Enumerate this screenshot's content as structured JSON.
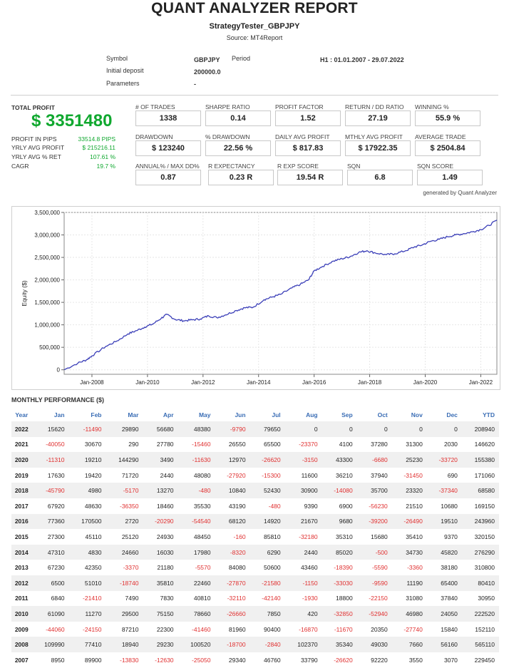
{
  "header": {
    "title": "QUANT ANALYZER REPORT",
    "subtitle": "StrategyTester_GBPJPY",
    "source": "Source: MT4Report"
  },
  "info": {
    "symbol_label": "Symbol",
    "symbol_value": "GBPJPY",
    "period_label": "Period",
    "period_value": "H1 : 01.01.2007 - 29.07.2022",
    "deposit_label": "Initial deposit",
    "deposit_value": "200000.0",
    "params_label": "Parameters",
    "params_value": "-"
  },
  "total_profit": {
    "label": "TOTAL PROFIT",
    "value": "$ 3351480",
    "rows": [
      {
        "label": "PROFIT IN PIPS",
        "value": "33514.8 PIPS"
      },
      {
        "label": "YRLY AVG PROFIT",
        "value": "$ 215216.11"
      },
      {
        "label": "YRLY AVG % RET",
        "value": "107.61 %"
      },
      {
        "label": "CAGR",
        "value": "19.7 %"
      }
    ]
  },
  "metrics": {
    "trades": {
      "label": "# OF TRADES",
      "value": "1338"
    },
    "sharpe": {
      "label": "SHARPE RATIO",
      "value": "0.14"
    },
    "profit_factor": {
      "label": "PROFIT FACTOR",
      "value": "1.52"
    },
    "return_dd": {
      "label": "RETURN / DD RATIO",
      "value": "27.19"
    },
    "winning": {
      "label": "WINNING %",
      "value": "55.9 %"
    },
    "drawdown": {
      "label": "DRAWDOWN",
      "value": "$ 123240"
    },
    "pct_drawdown": {
      "label": "% DRAWDOWN",
      "value": "22.56 %"
    },
    "daily_avg": {
      "label": "DAILY AVG PROFIT",
      "value": "$ 817.83"
    },
    "monthly_avg": {
      "label": "MTHLY AVG PROFIT",
      "value": "$ 17922.35"
    },
    "avg_trade": {
      "label": "AVERAGE TRADE",
      "value": "$ 2504.84"
    },
    "annual_maxdd": {
      "label": "ANNUAL% / MAX DD%",
      "value": "0.87"
    },
    "r_expectancy": {
      "label": "R EXPECTANCY",
      "value": "0.23 R"
    },
    "r_exp_score": {
      "label": "R EXP SCORE",
      "value": "19.54 R"
    },
    "sqn": {
      "label": "SQN",
      "value": "6.8"
    },
    "sqn_score": {
      "label": "SQN SCORE",
      "value": "1.49"
    }
  },
  "generated_by": "generated by Quant Analyzer",
  "chart_data": {
    "type": "line",
    "title": "",
    "xlabel": "",
    "ylabel": "Equity ($)",
    "xlim": [
      2007.0,
      2022.58
    ],
    "ylim": [
      -100000,
      3500000
    ],
    "yticks": [
      0,
      500000,
      1000000,
      1500000,
      2000000,
      2500000,
      3000000,
      3500000
    ],
    "ytick_labels": [
      "0",
      "500,000",
      "1,000,000",
      "1,500,000",
      "2,000,000",
      "2,500,000",
      "3,000,000",
      "3,500,000"
    ],
    "xticks": [
      2008,
      2010,
      2012,
      2014,
      2016,
      2018,
      2020,
      2022
    ],
    "xtick_labels": [
      "Jan-2008",
      "Jan-2010",
      "Jan-2012",
      "Jan-2014",
      "Jan-2016",
      "Jan-2018",
      "Jan-2020",
      "Jan-2022"
    ],
    "series": [
      {
        "name": "Equity",
        "x": [
          2007.0,
          2007.5,
          2007.8,
          2008.0,
          2008.5,
          2008.9,
          2009.3,
          2009.6,
          2009.9,
          2010.2,
          2010.5,
          2010.7,
          2011.0,
          2011.3,
          2011.6,
          2011.9,
          2012.2,
          2012.5,
          2012.8,
          2013.2,
          2013.5,
          2013.8,
          2014.2,
          2014.5,
          2014.8,
          2015.2,
          2015.5,
          2015.8,
          2016.0,
          2016.3,
          2016.7,
          2017.0,
          2017.3,
          2017.6,
          2017.9,
          2018.2,
          2018.6,
          2018.9,
          2019.3,
          2019.6,
          2019.9,
          2020.2,
          2020.5,
          2020.8,
          2021.1,
          2021.4,
          2021.7,
          2022.0,
          2022.3,
          2022.58
        ],
        "values": [
          0,
          150000,
          220000,
          310000,
          520000,
          640000,
          800000,
          870000,
          950000,
          1020000,
          1150000,
          1230000,
          1120000,
          1090000,
          1110000,
          1130000,
          1200000,
          1160000,
          1220000,
          1320000,
          1380000,
          1390000,
          1560000,
          1620000,
          1680000,
          1820000,
          1900000,
          2000000,
          2200000,
          2300000,
          2420000,
          2470000,
          2520000,
          2610000,
          2650000,
          2600000,
          2560000,
          2580000,
          2650000,
          2730000,
          2780000,
          2860000,
          2900000,
          2960000,
          3000000,
          3030000,
          3070000,
          3120000,
          3210000,
          3330000
        ]
      }
    ]
  },
  "monthly": {
    "title": "MONTHLY PERFORMANCE ($)",
    "columns": [
      "Year",
      "Jan",
      "Feb",
      "Mar",
      "Apr",
      "May",
      "Jun",
      "Jul",
      "Aug",
      "Sep",
      "Oct",
      "Nov",
      "Dec",
      "YTD"
    ],
    "rows": [
      [
        "2022",
        "15620",
        "-11490",
        "29890",
        "56680",
        "48380",
        "-9790",
        "79650",
        "0",
        "0",
        "0",
        "0",
        "0",
        "208940"
      ],
      [
        "2021",
        "-40050",
        "30670",
        "290",
        "27780",
        "-15460",
        "26550",
        "65500",
        "-23370",
        "4100",
        "37280",
        "31300",
        "2030",
        "146620"
      ],
      [
        "2020",
        "-11310",
        "19210",
        "144290",
        "3490",
        "-11630",
        "12970",
        "-26620",
        "-3150",
        "43300",
        "-6680",
        "25230",
        "-33720",
        "155380"
      ],
      [
        "2019",
        "17630",
        "19420",
        "71720",
        "2440",
        "48080",
        "-27920",
        "-15300",
        "11600",
        "36210",
        "37940",
        "-31450",
        "690",
        "171060"
      ],
      [
        "2018",
        "-45790",
        "4980",
        "-5170",
        "13270",
        "-480",
        "10840",
        "52430",
        "30900",
        "-14080",
        "35700",
        "23320",
        "-37340",
        "68580"
      ],
      [
        "2017",
        "67920",
        "48630",
        "-36350",
        "18460",
        "35530",
        "43190",
        "-480",
        "9390",
        "6900",
        "-56230",
        "21510",
        "10680",
        "169150"
      ],
      [
        "2016",
        "77360",
        "170500",
        "2720",
        "-20290",
        "-54540",
        "68120",
        "14920",
        "21670",
        "9680",
        "-39200",
        "-26490",
        "19510",
        "243960"
      ],
      [
        "2015",
        "27300",
        "45110",
        "25120",
        "24930",
        "48450",
        "-160",
        "85810",
        "-32180",
        "35310",
        "15680",
        "35410",
        "9370",
        "320150"
      ],
      [
        "2014",
        "47310",
        "4830",
        "24660",
        "16030",
        "17980",
        "-8320",
        "6290",
        "2440",
        "85020",
        "-500",
        "34730",
        "45820",
        "276290"
      ],
      [
        "2013",
        "67230",
        "42350",
        "-3370",
        "21180",
        "-5570",
        "84080",
        "50600",
        "43460",
        "-18390",
        "-5590",
        "-3360",
        "38180",
        "310800"
      ],
      [
        "2012",
        "6500",
        "51010",
        "-18740",
        "35810",
        "22460",
        "-27870",
        "-21580",
        "-1150",
        "-33030",
        "-9590",
        "11190",
        "65400",
        "80410"
      ],
      [
        "2011",
        "6840",
        "-21410",
        "7490",
        "7830",
        "40810",
        "-32110",
        "-42140",
        "-1930",
        "18800",
        "-22150",
        "31080",
        "37840",
        "30950"
      ],
      [
        "2010",
        "61090",
        "11270",
        "29500",
        "75150",
        "78660",
        "-26660",
        "7850",
        "420",
        "-32850",
        "-52940",
        "46980",
        "24050",
        "222520"
      ],
      [
        "2009",
        "-44060",
        "-24150",
        "87210",
        "22300",
        "-41460",
        "81960",
        "90400",
        "-16870",
        "-11670",
        "20350",
        "-27740",
        "15840",
        "152110"
      ],
      [
        "2008",
        "109990",
        "77410",
        "18940",
        "29230",
        "100520",
        "-18700",
        "-2840",
        "102370",
        "35340",
        "49030",
        "7660",
        "56160",
        "565110"
      ],
      [
        "2007",
        "8950",
        "89900",
        "-13830",
        "-12630",
        "-25050",
        "29340",
        "46760",
        "33790",
        "-26620",
        "92220",
        "3550",
        "3070",
        "229450"
      ]
    ]
  }
}
